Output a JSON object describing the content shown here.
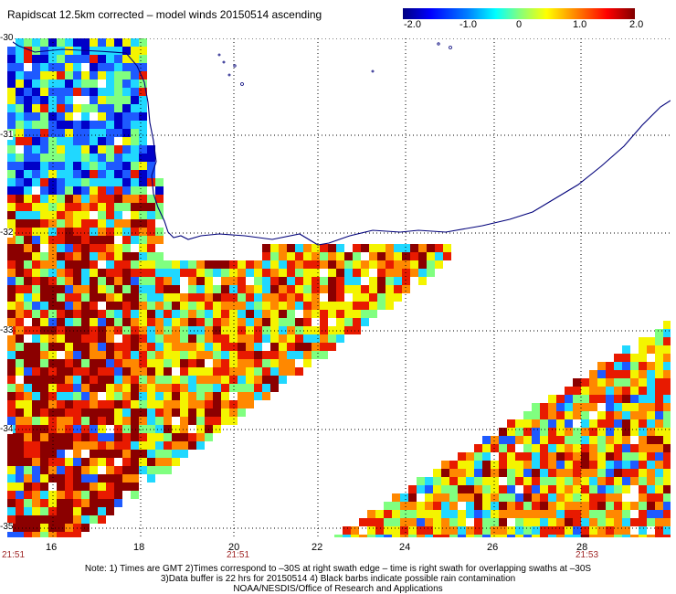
{
  "title": "Rapidscat 12.5km corrected – model winds 20150514 ascending",
  "colorbar": {
    "ticks": [
      "-2.0",
      "-1.0",
      "0",
      "1.0",
      "2.0"
    ],
    "range": [
      -2.0,
      2.0
    ]
  },
  "map": {
    "x_ticks": [
      "16",
      "18",
      "20",
      "22",
      "24",
      "26",
      "28"
    ],
    "y_ticks": [
      "-30",
      "-31",
      "-32",
      "-33",
      "-34",
      "-35"
    ],
    "time_labels": [
      "21:51",
      "21:51",
      "21:53"
    ],
    "colors": {
      "coast": "#00007a",
      "grid": "#000000",
      "dark_red": "#8b0000",
      "red": "#e81a00",
      "orange": "#ff8800",
      "yellow": "#f4f400",
      "green": "#80ff80",
      "cyan": "#20d8ff",
      "blue": "#1e5aff",
      "dark_blue": "#0000c8"
    }
  },
  "footer": {
    "line1": "Note: 1) Times are GMT 2)Times correspond to –30S at right swath edge – time is right swath for overlapping swaths at –30S",
    "line2": "3)Data buffer is 22 hrs for 20150514 4) Black barbs indicate possible rain contamination",
    "line3": "NOAA/NESDIS/Office of Research and Applications"
  }
}
